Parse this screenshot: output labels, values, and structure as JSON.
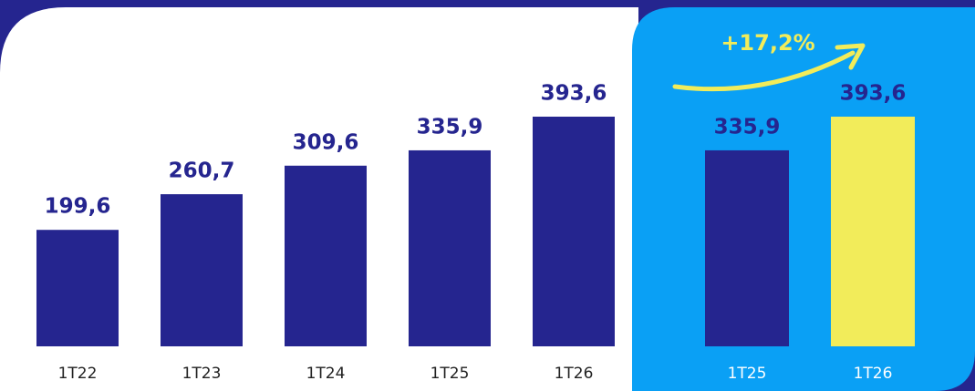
{
  "chart_data": [
    {
      "type": "bar",
      "categories": [
        "1T22",
        "1T23",
        "1T24",
        "1T25",
        "1T26"
      ],
      "values": [
        199.6,
        260.7,
        309.6,
        335.9,
        393.6
      ],
      "value_labels": [
        "199,6",
        "260,7",
        "309,6",
        "335,9",
        "393,6"
      ],
      "color": "#25258f"
    },
    {
      "type": "bar",
      "categories": [
        "1T25",
        "1T26"
      ],
      "values": [
        335.9,
        393.6
      ],
      "value_labels": [
        "335,9",
        "393,6"
      ],
      "colors": [
        "#25258f",
        "#f2ec5a"
      ],
      "annotation": "+17,2%"
    }
  ]
}
